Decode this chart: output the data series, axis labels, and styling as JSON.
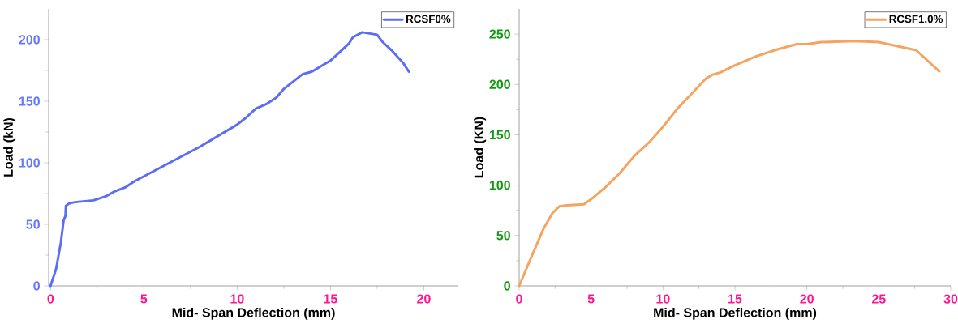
{
  "chart_data": [
    {
      "type": "line",
      "xlabel": "Mid- Span Deflection (mm)",
      "ylabel": "Load (kN)",
      "xlim": [
        -0.1,
        21.85
      ],
      "ylim": [
        0,
        225
      ],
      "xticks": [
        0,
        5,
        10,
        15,
        20
      ],
      "yticks": [
        0,
        50,
        100,
        150,
        200
      ],
      "legend": "top right",
      "marker": "none",
      "line_style": "solid",
      "grid": false,
      "series": [
        {
          "name": "RCSF0%",
          "color": "#5b6cf5",
          "x": [
            0,
            0.3,
            0.55,
            0.7,
            0.8,
            0.82,
            1,
            1.3,
            2.3,
            3,
            3.4,
            4,
            4.5,
            5,
            6,
            7,
            8,
            9,
            10,
            10.5,
            11,
            11.6,
            12.1,
            12.5,
            13.5,
            14,
            15,
            16,
            16.2,
            16.7,
            17.5,
            17.8,
            18.3,
            18.9,
            19.2
          ],
          "values": [
            0,
            14,
            35,
            53,
            57,
            65,
            67,
            68,
            69.5,
            73,
            76.5,
            80,
            85,
            89,
            97,
            105,
            113,
            122,
            131,
            137,
            144,
            148,
            153,
            160,
            172,
            174,
            183,
            197,
            202,
            206,
            204,
            198,
            191,
            181,
            174
          ]
        }
      ]
    },
    {
      "type": "line",
      "xlabel": "Mid- Span Deflection (mm)",
      "ylabel": "Load (KN)",
      "xlim": [
        0,
        30
      ],
      "ylim": [
        0,
        275
      ],
      "xticks": [
        0,
        5,
        10,
        15,
        20,
        25,
        30
      ],
      "yticks": [
        0,
        50,
        100,
        150,
        200,
        250
      ],
      "legend": "top right",
      "marker": "none",
      "line_style": "solid",
      "grid": false,
      "series": [
        {
          "name": "RCSF1.0%",
          "color": "#f4a460",
          "x": [
            0,
            0.8,
            1.7,
            2.3,
            2.8,
            3.3,
            4.5,
            5,
            6,
            7,
            8,
            9,
            10,
            11,
            12,
            13,
            13.5,
            14,
            15,
            16.5,
            18,
            19.3,
            20,
            21,
            23.3,
            25,
            27.6,
            29.2
          ],
          "values": [
            0,
            27,
            57,
            72,
            79,
            80,
            81,
            86,
            98,
            112,
            129,
            142,
            158,
            176,
            191,
            206,
            210,
            212,
            219,
            228,
            235,
            240,
            240,
            242,
            243,
            242,
            234,
            213
          ]
        }
      ]
    }
  ]
}
